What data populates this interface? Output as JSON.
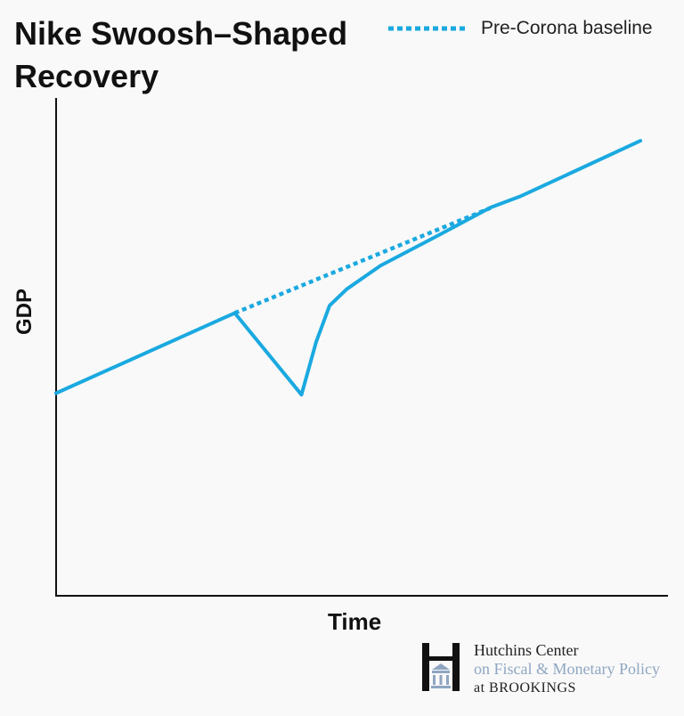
{
  "chart_data": {
    "type": "line",
    "title": "Nike Swoosh–Shaped Recovery",
    "xlabel": "Time",
    "ylabel": "GDP",
    "grid": false,
    "legend_position": "top-right",
    "legend": [
      {
        "label": "Pre-Corona baseline",
        "style": "dotted"
      }
    ],
    "xlim": [
      0,
      100
    ],
    "ylim": [
      0,
      100
    ],
    "series": [
      {
        "style": "solid",
        "color": "#1aa9e0",
        "points": [
          [
            0,
            40.7
          ],
          [
            29.2,
            56.8
          ],
          [
            40.1,
            40.4
          ],
          [
            42.5,
            51
          ],
          [
            44.7,
            58.3
          ],
          [
            47.5,
            61.6
          ],
          [
            53,
            66.3
          ],
          [
            62,
            72.1
          ],
          [
            71,
            78
          ],
          [
            76,
            80.3
          ],
          [
            95.5,
            91.4
          ]
        ]
      },
      {
        "name": "Pre-Corona baseline",
        "style": "dotted",
        "color": "#1aa9e0",
        "points": [
          [
            29.2,
            56.8
          ],
          [
            71,
            77.9
          ]
        ]
      }
    ]
  },
  "brand": {
    "line1": "Hutchins Center",
    "line2": "on Fiscal & Monetary Policy",
    "line3": "at BROOKINGS"
  }
}
